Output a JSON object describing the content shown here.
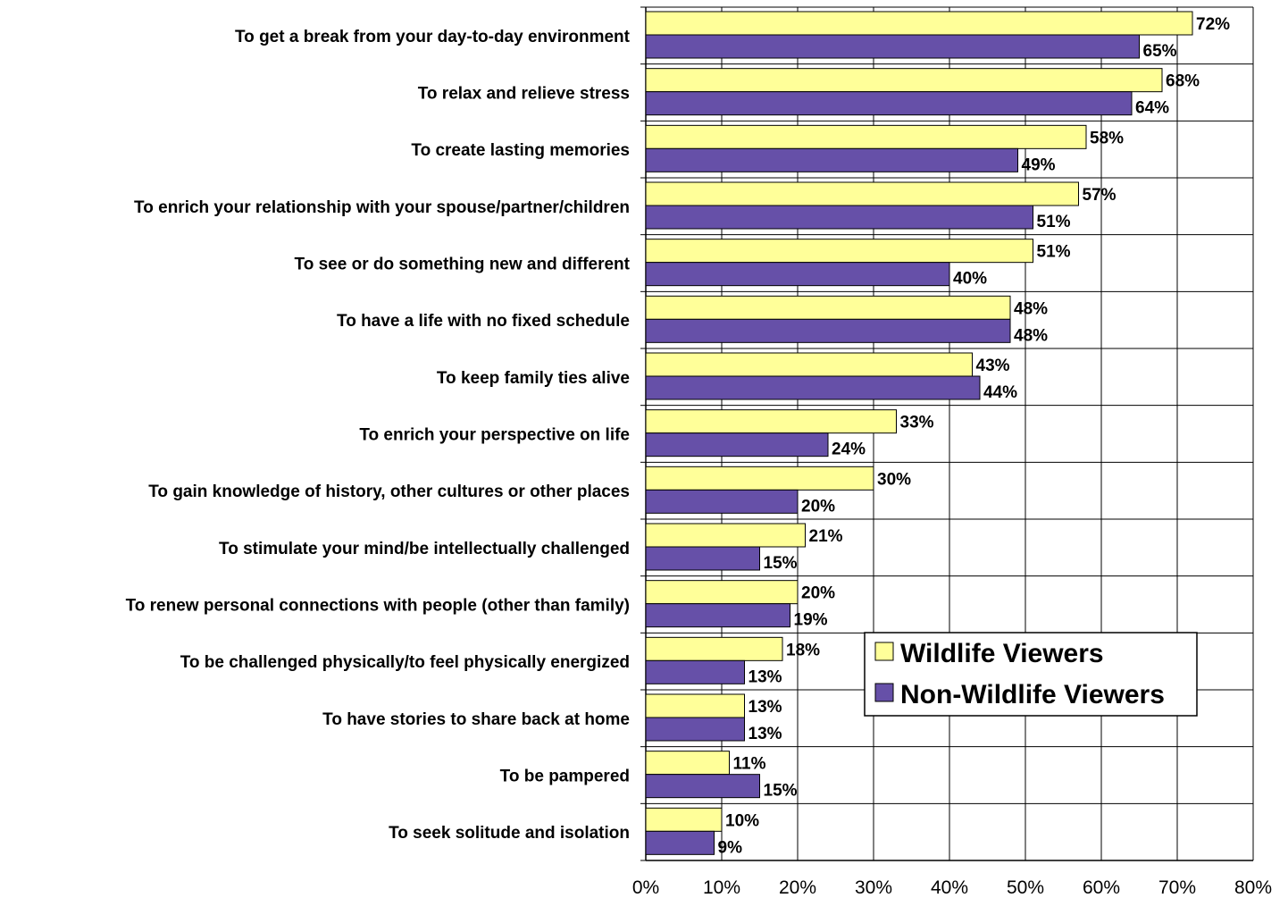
{
  "chart_data": {
    "type": "bar",
    "orientation": "horizontal",
    "categories": [
      "To get a break from your day-to-day environment",
      "To relax and relieve stress",
      "To create lasting memories",
      "To enrich your relationship with your spouse/partner/children",
      "To see or do something new and different",
      "To have a life with no fixed schedule",
      "To keep family ties alive",
      "To enrich your perspective on life",
      "To gain knowledge of history, other cultures or other places",
      "To stimulate your mind/be intellectually challenged",
      "To renew personal connections with people (other than family)",
      "To be challenged physically/to feel physically energized",
      "To have stories to share back at home",
      "To be pampered",
      "To seek solitude and isolation"
    ],
    "series": [
      {
        "name": "Wildlife Viewers",
        "color": "#ffff99",
        "values": [
          72,
          68,
          58,
          57,
          51,
          48,
          43,
          33,
          30,
          21,
          20,
          18,
          13,
          11,
          10
        ],
        "labels": [
          "72%",
          "68%",
          "58%",
          "57%",
          "51%",
          "48%",
          "43%",
          "33%",
          "30%",
          "21%",
          "20%",
          "18%",
          "13%",
          "11%",
          "10%"
        ]
      },
      {
        "name": "Non-Wildlife Viewers",
        "color": "#6650a8",
        "values": [
          65,
          64,
          49,
          51,
          40,
          48,
          44,
          24,
          20,
          15,
          19,
          13,
          13,
          15,
          9
        ],
        "labels": [
          "65%",
          "64%",
          "49%",
          "51%",
          "40%",
          "48%",
          "44%",
          "24%",
          "20%",
          "15%",
          "19%",
          "13%",
          "13%",
          "15%",
          "9%"
        ]
      }
    ],
    "xlim": [
      0,
      80
    ],
    "x_ticks": [
      "0%",
      "10%",
      "20%",
      "30%",
      "40%",
      "50%",
      "60%",
      "70%",
      "80%"
    ],
    "grid": true,
    "legend": {
      "position": "lower-right",
      "entries": [
        "Wildlife Viewers",
        "Non-Wildlife Viewers"
      ]
    },
    "title": "",
    "xlabel": "",
    "ylabel": ""
  }
}
